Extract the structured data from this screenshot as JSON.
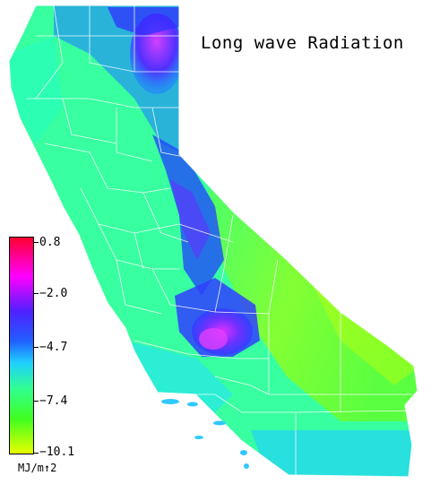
{
  "title": "Long wave Radiation",
  "legend": {
    "ticks": [
      "0.8",
      "−2.0",
      "−4.7",
      "−7.4",
      "−10.1"
    ],
    "units": "MJ/m↑2",
    "range": [
      -10.1,
      0.8
    ]
  },
  "colors": {
    "max": "#ff0040",
    "high": "#e020ff",
    "mid_high": "#3030ff",
    "mid": "#20c0ff",
    "mid_low": "#30ff80",
    "low": "#40ff20",
    "min": "#d8ff00",
    "boundary": "#ffffff"
  }
}
